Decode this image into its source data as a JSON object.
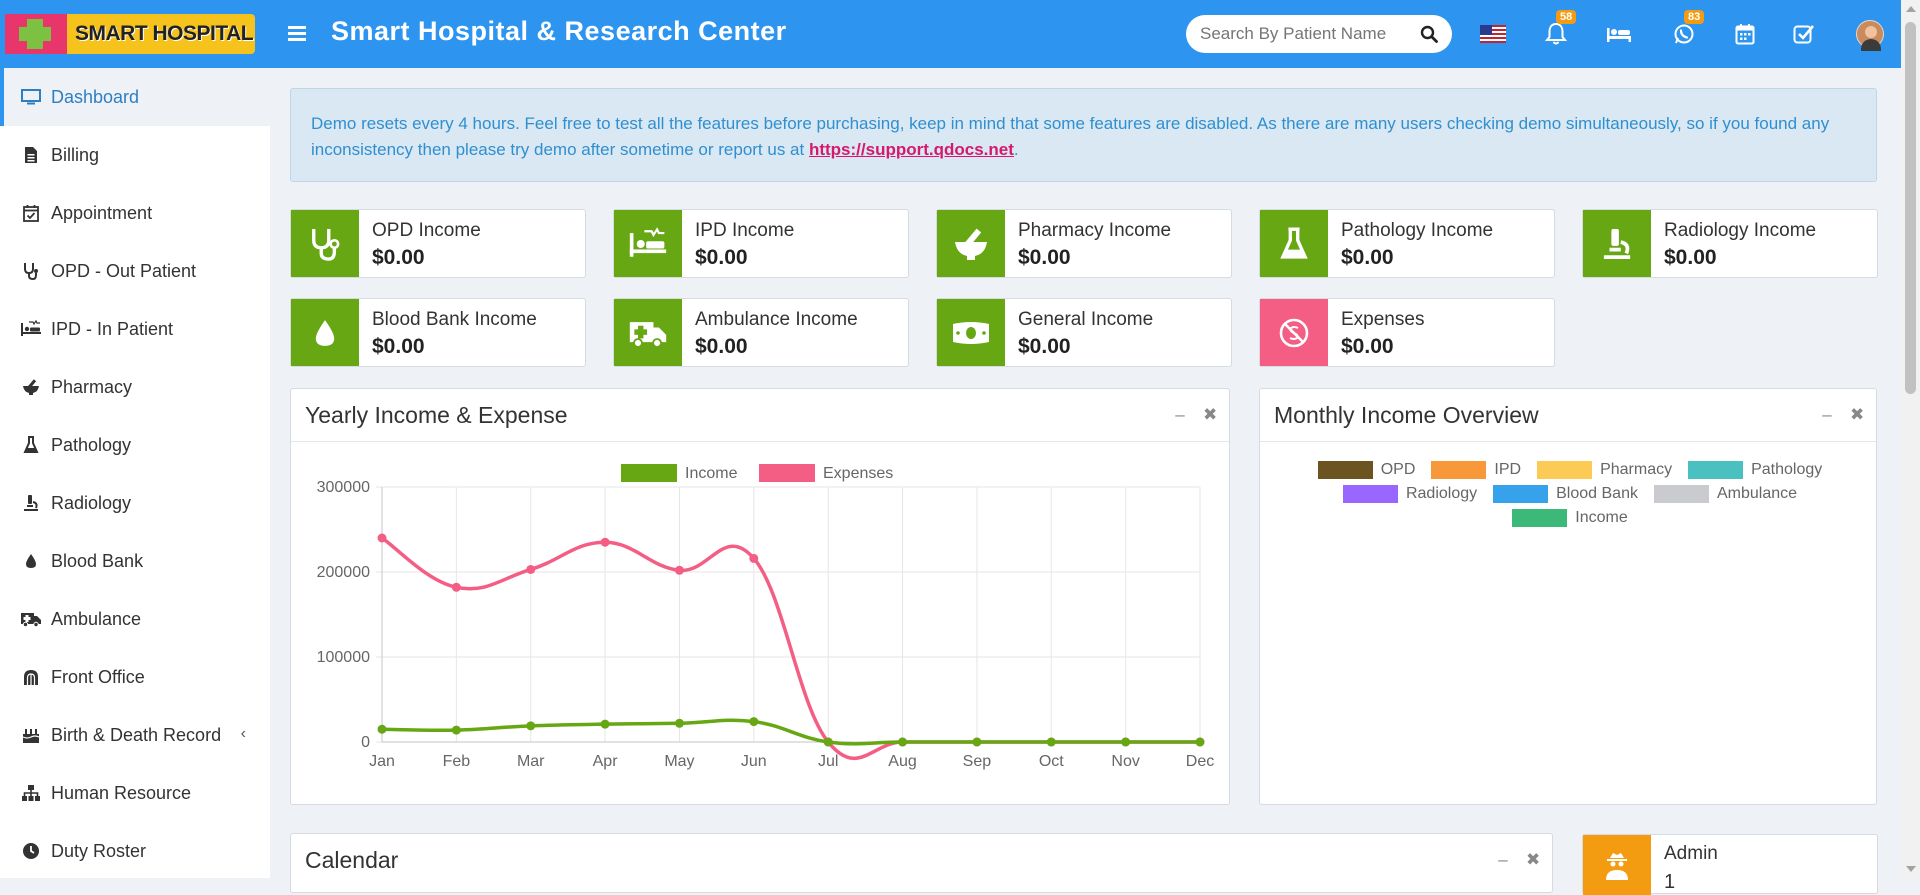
{
  "header": {
    "logo_text": "SMART HOSPITAL",
    "title": "Smart Hospital & Research Center",
    "search_placeholder": "Search By Patient Name",
    "notification_count": "58",
    "whatsapp_count": "83"
  },
  "sidebar": {
    "items": [
      {
        "label": "Dashboard",
        "icon": "monitor-icon",
        "active": true
      },
      {
        "label": "Billing",
        "icon": "file-icon"
      },
      {
        "label": "Appointment",
        "icon": "calendar-check-icon"
      },
      {
        "label": "OPD - Out Patient",
        "icon": "stethoscope-icon"
      },
      {
        "label": "IPD - In Patient",
        "icon": "procedures-icon"
      },
      {
        "label": "Pharmacy",
        "icon": "mortar-pestle-icon"
      },
      {
        "label": "Pathology",
        "icon": "flask-icon"
      },
      {
        "label": "Radiology",
        "icon": "microscope-icon"
      },
      {
        "label": "Blood Bank",
        "icon": "tint-icon"
      },
      {
        "label": "Ambulance",
        "icon": "ambulance-icon"
      },
      {
        "label": "Front Office",
        "icon": "dungeon-icon"
      },
      {
        "label": "Birth & Death Record",
        "icon": "birthday-cake-icon"
      },
      {
        "label": "Human Resource",
        "icon": "sitemap-icon"
      },
      {
        "label": "Duty Roster",
        "icon": "clock-icon"
      }
    ]
  },
  "alert": {
    "text": "Demo resets every 4 hours. Feel free to test all the features before purchasing, keep in mind that some features are disabled. As there are many users checking demo simultaneously, so if you found any inconsistency then please try demo after sometime or report us at ",
    "link": "https://support.qdocs.net",
    "suffix": "."
  },
  "cards": [
    {
      "label": "OPD Income",
      "amount": "$0.00",
      "icon": "stethoscope-icon"
    },
    {
      "label": "IPD Income",
      "amount": "$0.00",
      "icon": "procedures-icon"
    },
    {
      "label": "Pharmacy Income",
      "amount": "$0.00",
      "icon": "mortar-pestle-icon"
    },
    {
      "label": "Pathology Income",
      "amount": "$0.00",
      "icon": "flask-icon"
    },
    {
      "label": "Radiology Income",
      "amount": "$0.00",
      "icon": "microscope-icon"
    },
    {
      "label": "Blood Bank Income",
      "amount": "$0.00",
      "icon": "tint-icon"
    },
    {
      "label": "Ambulance Income",
      "amount": "$0.00",
      "icon": "ambulance-icon"
    },
    {
      "label": "General Income",
      "amount": "$0.00",
      "icon": "money-bill-icon"
    },
    {
      "label": "Expenses",
      "amount": "$0.00",
      "icon": "no-money-icon"
    }
  ],
  "panels": {
    "yearly_title": "Yearly Income & Expense",
    "monthly_title": "Monthly Income Overview",
    "calendar_title": "Calendar",
    "admin_label": "Admin",
    "admin_count": "1"
  },
  "colors": {
    "header": "#2d95f0",
    "income": "#66a713",
    "expenses": "#f45d84",
    "alert_text": "#2f8fd0"
  },
  "chart_data": [
    {
      "type": "line",
      "title": "Yearly Income & Expense",
      "x": [
        "Jan",
        "Feb",
        "Mar",
        "Apr",
        "May",
        "Jun",
        "Jul",
        "Aug",
        "Sep",
        "Oct",
        "Nov",
        "Dec"
      ],
      "ylim": [
        0,
        300000
      ],
      "yticks": [
        "300000",
        "200000",
        "100000",
        "0"
      ],
      "grid": true,
      "legend": "top",
      "series": [
        {
          "name": "Income",
          "color": "#66a713",
          "values": [
            15000,
            14000,
            19000,
            21000,
            22000,
            24000,
            0,
            0,
            0,
            0,
            0,
            0
          ]
        },
        {
          "name": "Expenses",
          "color": "#f45d84",
          "values": [
            240000,
            182000,
            203000,
            235000,
            202000,
            216000,
            0,
            0,
            0,
            0,
            0,
            0
          ]
        }
      ]
    },
    {
      "type": "pie",
      "title": "Monthly Income Overview",
      "legend": "top",
      "series": [
        {
          "name": "OPD",
          "color": "#6b5420",
          "values": []
        },
        {
          "name": "IPD",
          "color": "#f7993b",
          "values": []
        },
        {
          "name": "Pharmacy",
          "color": "#fccb56",
          "values": []
        },
        {
          "name": "Pathology",
          "color": "#4bc0c0",
          "values": []
        },
        {
          "name": "Radiology",
          "color": "#9966ff",
          "values": []
        },
        {
          "name": "Blood Bank",
          "color": "#36a2eb",
          "values": []
        },
        {
          "name": "Ambulance",
          "color": "#c9cbcf",
          "values": []
        },
        {
          "name": "Income",
          "color": "#3cb878",
          "values": []
        }
      ]
    }
  ]
}
